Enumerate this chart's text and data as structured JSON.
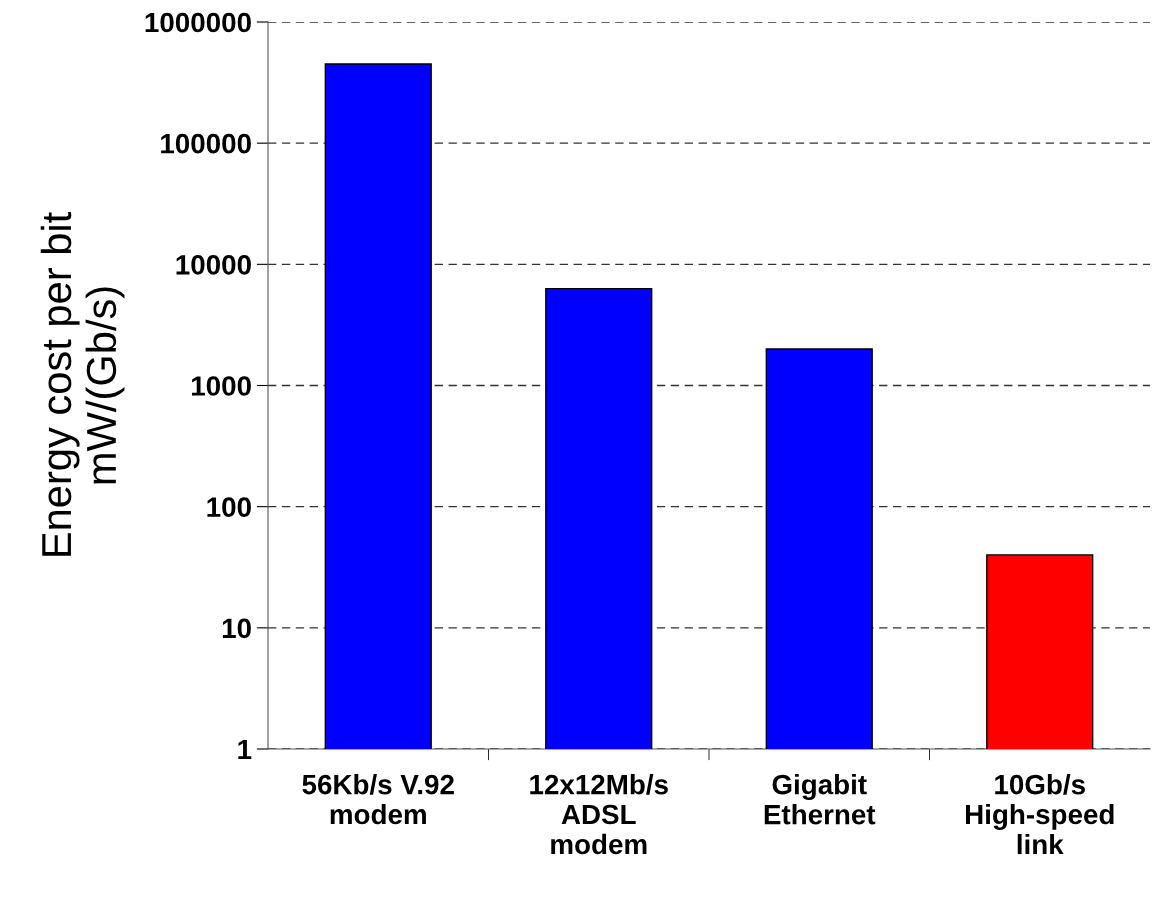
{
  "chart_data": {
    "type": "bar",
    "ylabel": "Energy cost per bit\nmW/(Gb/s)",
    "categories": [
      "56Kb/s V.92\nmodem",
      "12x12Mb/s\nADSL\nmodem",
      "Gigabit\nEthernet",
      "10Gb/s\nHigh-speed\nlink"
    ],
    "values": [
      450000,
      6300,
      2000,
      40
    ],
    "colors": [
      "#0000ff",
      "#0000ff",
      "#0000ff",
      "#ff0000"
    ],
    "log": true,
    "ylim": [
      1,
      1000000
    ],
    "yticks": [
      1,
      10,
      100,
      1000,
      10000,
      100000,
      1000000
    ],
    "grid": "y"
  }
}
